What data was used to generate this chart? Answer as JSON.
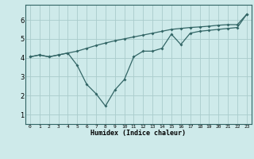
{
  "xlabel": "Humidex (Indice chaleur)",
  "bg_color": "#ceeaea",
  "line_color": "#336666",
  "grid_color": "#aacccc",
  "line1_x": [
    0,
    1,
    2,
    3,
    4,
    5,
    6,
    7,
    8,
    9,
    10,
    11,
    12,
    13,
    14,
    15,
    16,
    17,
    18,
    19,
    20,
    21,
    22,
    23
  ],
  "line1_y": [
    4.05,
    4.15,
    4.05,
    4.15,
    4.25,
    4.35,
    4.5,
    4.65,
    4.78,
    4.9,
    5.0,
    5.1,
    5.2,
    5.3,
    5.4,
    5.5,
    5.55,
    5.6,
    5.63,
    5.67,
    5.72,
    5.75,
    5.75,
    6.3
  ],
  "line2_x": [
    0,
    1,
    2,
    3,
    4,
    5,
    6,
    7,
    8,
    9,
    10,
    11,
    12,
    13,
    14,
    15,
    16,
    17,
    18,
    19,
    20,
    21,
    22,
    23
  ],
  "line2_y": [
    4.05,
    4.15,
    4.05,
    4.15,
    4.25,
    3.6,
    2.6,
    2.1,
    1.45,
    2.3,
    2.85,
    4.05,
    4.35,
    4.35,
    4.5,
    5.25,
    4.7,
    5.3,
    5.4,
    5.45,
    5.5,
    5.55,
    5.6,
    6.3
  ],
  "xlim": [
    -0.5,
    23.5
  ],
  "ylim": [
    0.5,
    6.8
  ],
  "yticks": [
    1,
    2,
    3,
    4,
    5,
    6
  ],
  "xticks": [
    0,
    1,
    2,
    3,
    4,
    5,
    6,
    7,
    8,
    9,
    10,
    11,
    12,
    13,
    14,
    15,
    16,
    17,
    18,
    19,
    20,
    21,
    22,
    23
  ]
}
